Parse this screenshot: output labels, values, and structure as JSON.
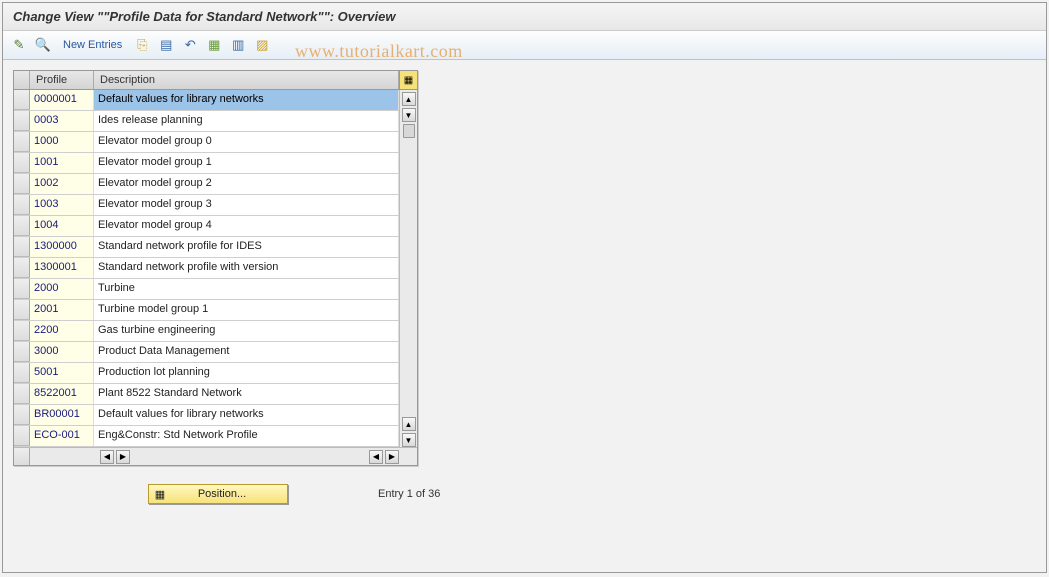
{
  "title": "Change View \"\"Profile Data for Standard Network\"\": Overview",
  "toolbar": {
    "new_entries_label": "New Entries"
  },
  "watermark": "www.tutorialkart.com",
  "columns": {
    "profile": "Profile",
    "description": "Description"
  },
  "rows": [
    {
      "profile": "0000001",
      "description": "Default values for library networks",
      "selected": true
    },
    {
      "profile": "0003",
      "description": "Ides release planning"
    },
    {
      "profile": "1000",
      "description": "Elevator model group 0"
    },
    {
      "profile": "1001",
      "description": "Elevator model group 1"
    },
    {
      "profile": "1002",
      "description": "Elevator model group 2"
    },
    {
      "profile": "1003",
      "description": "Elevator model group 3"
    },
    {
      "profile": "1004",
      "description": "Elevator model group 4"
    },
    {
      "profile": "1300000",
      "description": "Standard network profile for IDES"
    },
    {
      "profile": "1300001",
      "description": "Standard network profile with version"
    },
    {
      "profile": "2000",
      "description": "Turbine"
    },
    {
      "profile": "2001",
      "description": "Turbine model group 1"
    },
    {
      "profile": "2200",
      "description": "Gas turbine engineering"
    },
    {
      "profile": "3000",
      "description": "Product Data Management"
    },
    {
      "profile": "5001",
      "description": "Production lot planning"
    },
    {
      "profile": "8522001",
      "description": "Plant 8522 Standard Network"
    },
    {
      "profile": "BR00001",
      "description": "Default values for library networks"
    },
    {
      "profile": "ECO-001",
      "description": "Eng&Constr: Std Network Profile"
    }
  ],
  "position_button_label": "Position...",
  "entry_counter": "Entry 1 of 36",
  "colors": {
    "toolbar_bg_top": "#fdfdfd",
    "toolbar_bg_bot": "#e6eef6",
    "link_text": "#2657a0",
    "profile_cell_bg": "#ffffe8",
    "selected_cell_bg": "#9cc3e8",
    "position_btn_bg_top": "#fff8c0",
    "position_btn_bg_bot": "#f7e27a",
    "watermark_color": "#e8b070"
  }
}
